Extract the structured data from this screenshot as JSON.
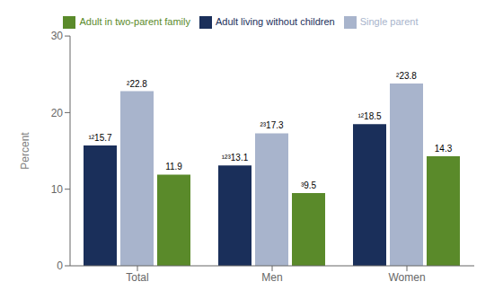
{
  "chart_data": {
    "type": "bar",
    "categories": [
      "Total",
      "Men",
      "Women"
    ],
    "series": [
      {
        "name": "Adult living without children",
        "color": "#1a2f5a",
        "values": [
          15.7,
          13.1,
          18.5
        ],
        "value_labels": [
          "¹²15.7",
          "¹²³13.1",
          "¹²18.5"
        ]
      },
      {
        "name": "Single parent",
        "color": "#a8b4cc",
        "values": [
          22.8,
          17.3,
          23.8
        ],
        "value_labels": [
          "²22.8",
          "²³17.3",
          "²23.8"
        ]
      },
      {
        "name": "Adult in two-parent family",
        "color": "#5a8a2a",
        "values": [
          11.9,
          9.5,
          14.3
        ],
        "value_labels": [
          "11.9",
          "³9.5",
          "14.3"
        ]
      }
    ],
    "ylabel": "Percent",
    "ylim": [
      0,
      30
    ],
    "yticks": [
      0,
      10,
      20,
      30
    ],
    "grid": false,
    "legend": "top",
    "data_labels": true
  }
}
